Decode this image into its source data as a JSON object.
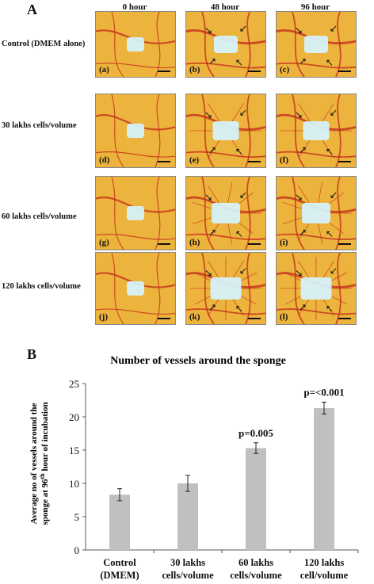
{
  "panel_a": {
    "letter": "A",
    "column_headers": [
      "0 hour",
      "48 hour",
      "96 hour"
    ],
    "row_labels": [
      "Control (DMEM alone)",
      "30 lakhs cells/volume",
      "60 lakhs cells/volume",
      "120 lakhs cells/volume"
    ],
    "photo_tags": [
      "(a)",
      "(b)",
      "(c)",
      "(d)",
      "(e)",
      "(f)",
      "(g)",
      "(h)",
      "(i)",
      "(j)",
      "(k)",
      "(l)"
    ]
  },
  "panel_b": {
    "letter": "B"
  },
  "chart_data": {
    "type": "bar",
    "title": "Number of vessels around the sponge",
    "ylabel_line1": "Average no of vessels around the",
    "ylabel_line2": "sponge at 96th hour of incubation",
    "ylim": [
      0,
      25
    ],
    "yticks": [
      0,
      5,
      10,
      15,
      20,
      25
    ],
    "categories": [
      [
        "Control",
        "(DMEM)"
      ],
      [
        "30 lakhs",
        "cells/volume"
      ],
      [
        "60 lakhs",
        "cells/volume"
      ],
      [
        "120 lakhs",
        "cell/volume"
      ]
    ],
    "values": [
      8.3,
      10.0,
      15.3,
      21.3
    ],
    "errors": [
      0.9,
      1.2,
      0.8,
      0.9
    ],
    "annotations": [
      "",
      "",
      "p=0.005",
      "p=<0.001"
    ],
    "bar_color": "#c0c0c0",
    "grid": false
  },
  "colors": {
    "membrane": "#e6a11c",
    "vessel": "#c0281a",
    "sponge": "#d6f4ff"
  }
}
